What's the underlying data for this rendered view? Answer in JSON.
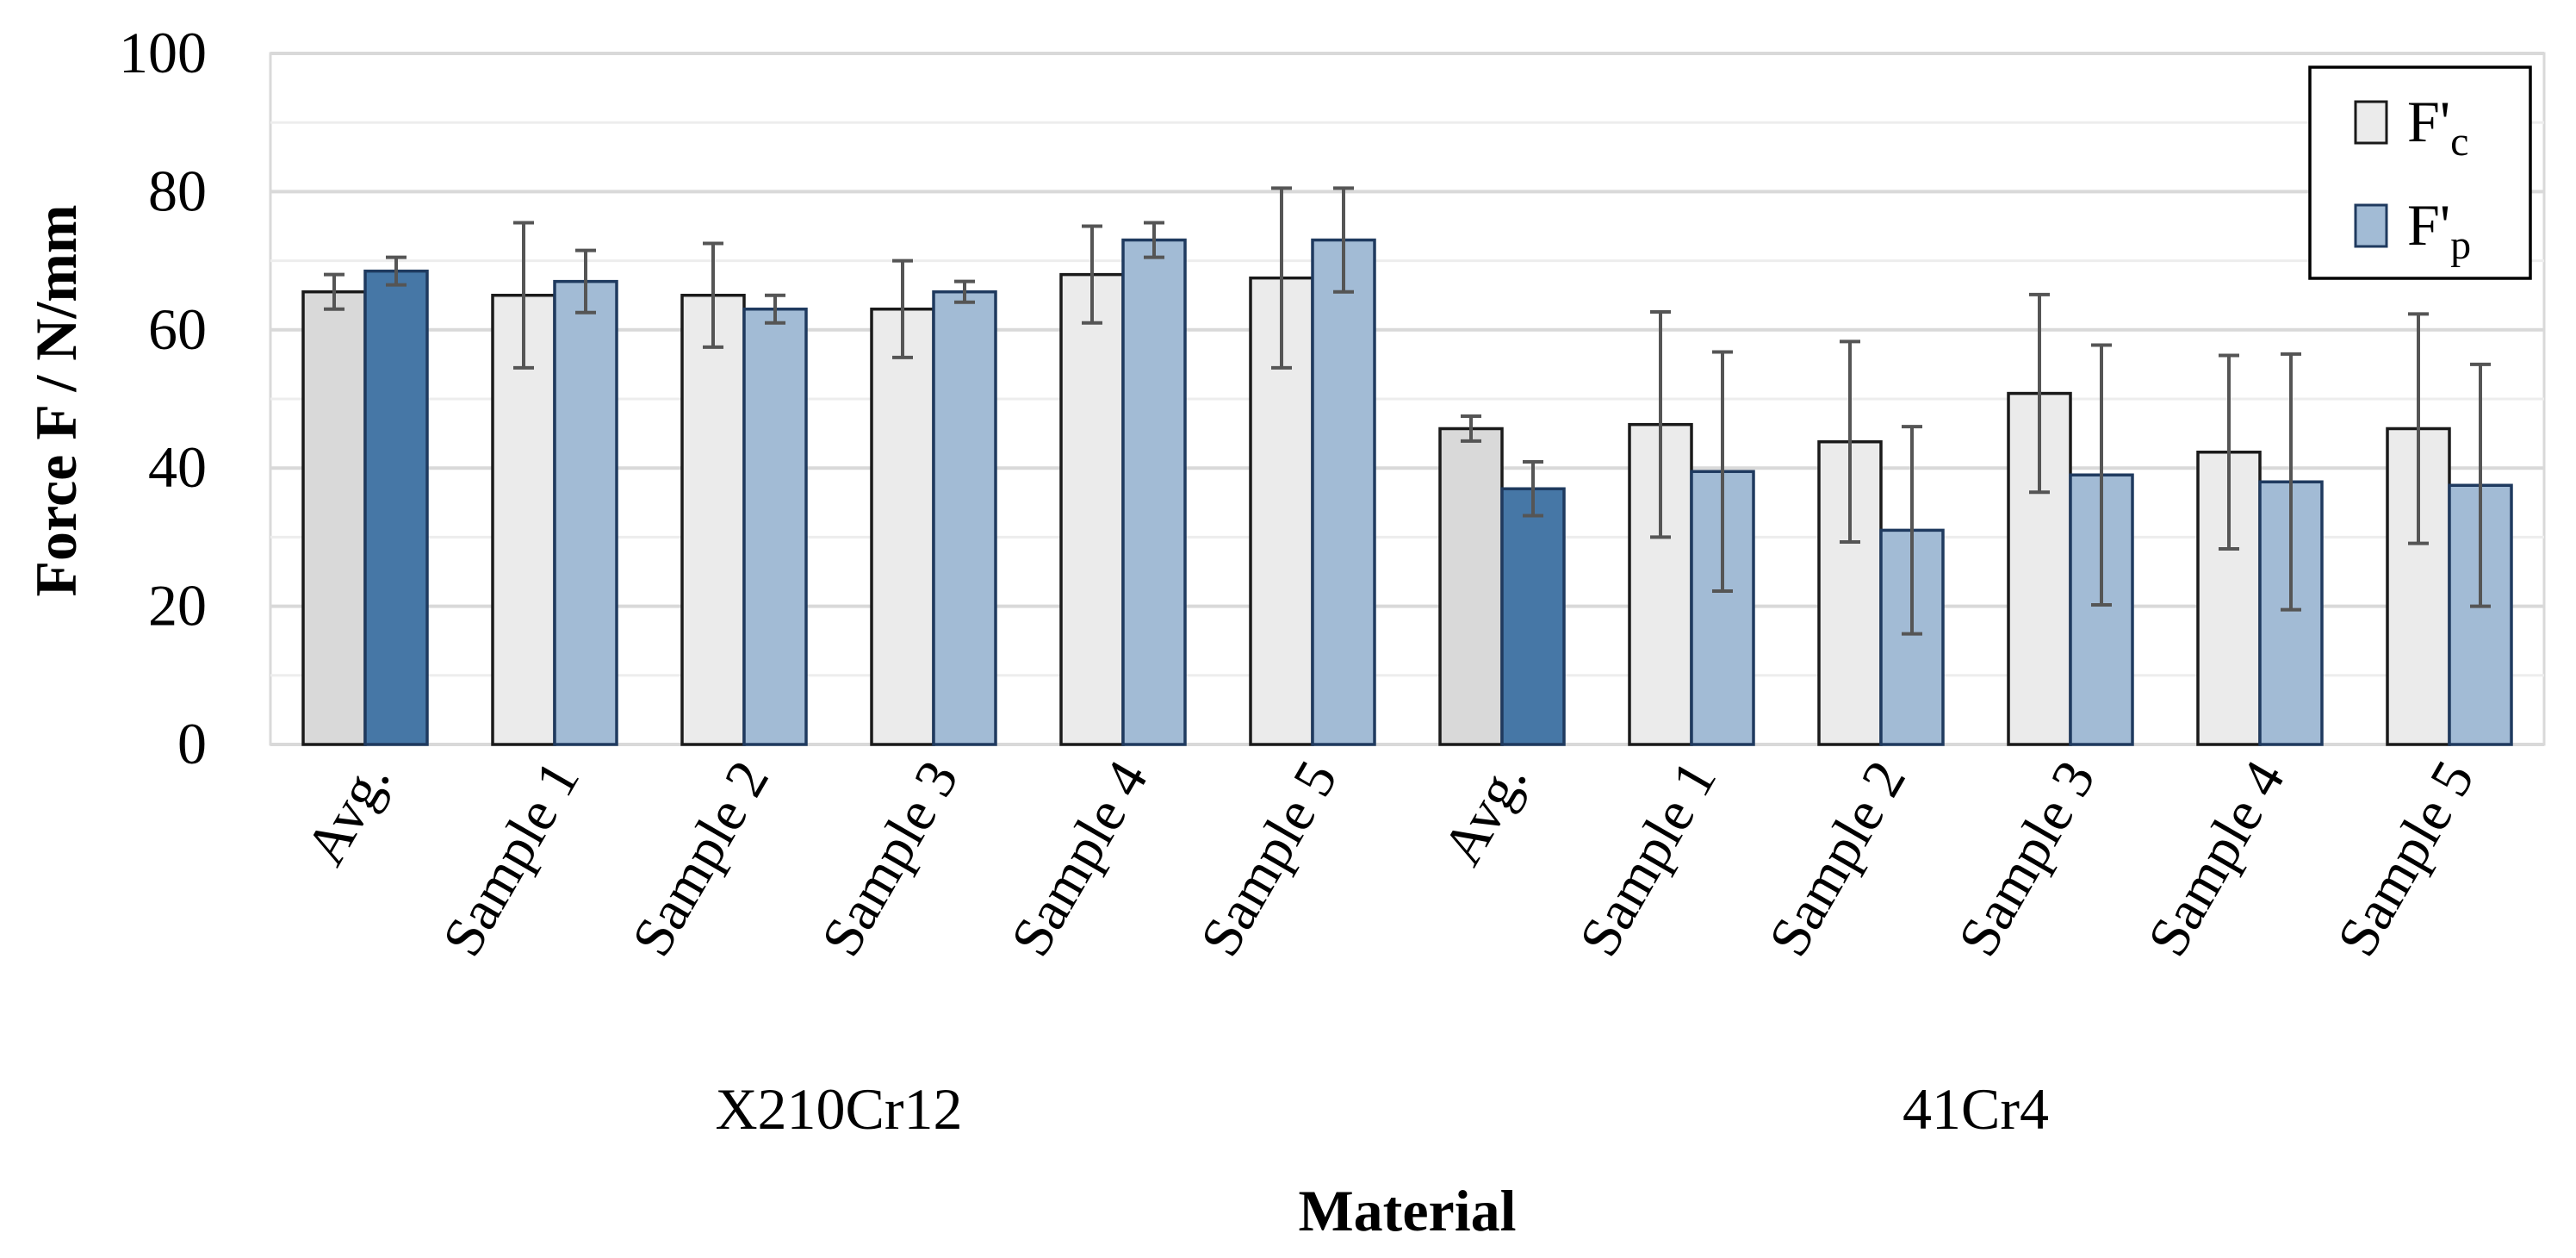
{
  "chart_data": {
    "type": "bar",
    "title": "",
    "xlabel": "Material",
    "ylabel": "Force F / N/mm",
    "ylim": [
      0,
      100
    ],
    "yticks": [
      "0",
      "20",
      "40",
      "60",
      "80",
      "100"
    ],
    "yticks_values": [
      0,
      20,
      40,
      60,
      80,
      100
    ],
    "groups": [
      {
        "label": "X210Cr12",
        "categories": [
          "Avg.",
          "Sample 1",
          "Sample 2",
          "Sample 3",
          "Sample 4",
          "Sample 5"
        ]
      },
      {
        "label": "41Cr4",
        "categories": [
          "Avg.",
          "Sample 1",
          "Sample 2",
          "Sample 3",
          "Sample 4",
          "Sample 5"
        ]
      }
    ],
    "categories": [
      "Avg.",
      "Sample 1",
      "Sample 2",
      "Sample 3",
      "Sample 4",
      "Sample 5",
      "Avg.",
      "Sample 1",
      "Sample 2",
      "Sample 3",
      "Sample 4",
      "Sample 5"
    ],
    "series": [
      {
        "name": "F'c",
        "legend_main": "F'",
        "legend_sub": "c",
        "color": "#EBEBEB",
        "avg_color": "#D9D9D9",
        "stroke": "#1A1A1A",
        "values": [
          65.5,
          65,
          65,
          63,
          68,
          67.5,
          45.7,
          46.3,
          43.8,
          50.8,
          42.3,
          45.7
        ],
        "error": [
          2.5,
          10.5,
          7.5,
          7.0,
          7.0,
          13.0,
          1.8,
          16.3,
          14.5,
          14.3,
          14.0,
          16.6
        ]
      },
      {
        "name": "F'p",
        "legend_main": "F'",
        "legend_sub": "p",
        "color": "#A2BBD5",
        "avg_color": "#4677A6",
        "stroke": "#1F3A5F",
        "values": [
          68.5,
          67,
          63,
          65.5,
          73,
          73,
          37,
          39.5,
          31,
          39,
          38,
          37.5
        ],
        "error": [
          2.0,
          4.5,
          2.0,
          1.5,
          2.5,
          7.5,
          3.9,
          17.3,
          15.0,
          18.8,
          18.5,
          17.5
        ]
      }
    ],
    "legend_position": "top-right",
    "grid": true,
    "error_bar_color": "#555555"
  }
}
